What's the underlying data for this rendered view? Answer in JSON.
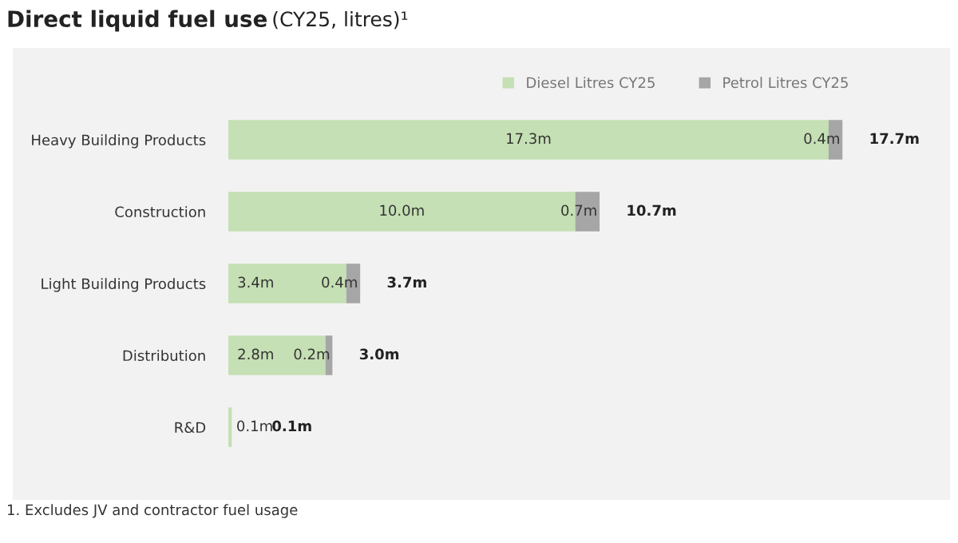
{
  "chart_data": {
    "type": "bar",
    "orientation": "horizontal",
    "stacked": true,
    "title": "Direct liquid fuel use",
    "subtitle": "(CY25, litres)¹",
    "categories": [
      "Heavy Building Products",
      "Construction",
      "Light Building Products",
      "Distribution",
      "R&D"
    ],
    "series": [
      {
        "name": "Diesel Litres CY25",
        "color": "#c5e0b4",
        "values": [
          17.3,
          10.0,
          3.4,
          2.8,
          0.1
        ],
        "value_labels": [
          "17.3m",
          "10.0m",
          "3.4m",
          "2.8m",
          "0.1m"
        ]
      },
      {
        "name": "Petrol Litres CY25",
        "color": "#a6a6a6",
        "values": [
          0.4,
          0.7,
          0.4,
          0.2,
          0.0
        ],
        "value_labels": [
          "0.4m",
          "0.7m",
          "0.4m",
          "0.2m",
          null
        ]
      }
    ],
    "totals": [
      "17.7m",
      "10.7m",
      "3.7m",
      "3.0m",
      "0.1m"
    ],
    "xlim": [
      0,
      20.8
    ],
    "tick_labels": "y",
    "grid": false,
    "legend": "top",
    "annotations": [
      "1. Excludes JV and contractor fuel usage"
    ]
  }
}
